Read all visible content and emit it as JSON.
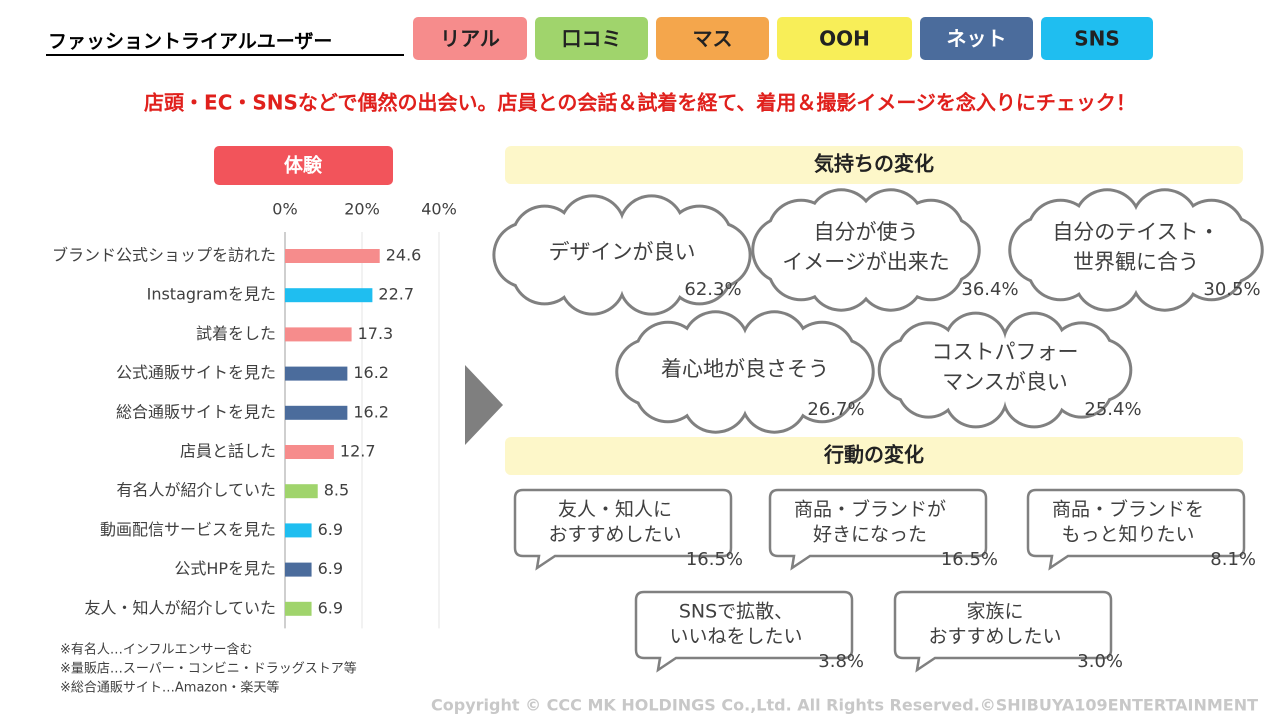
{
  "header": {
    "title": "ファッショントライアルユーザー",
    "tags": [
      {
        "label": "リアル",
        "color": "#f68c8c"
      },
      {
        "label": "口コミ",
        "color": "#a0d46c"
      },
      {
        "label": "マス",
        "color": "#f4a64c"
      },
      {
        "label": "OOH",
        "color": "#f8ee58"
      },
      {
        "label": "ネット",
        "color": "#4b6c9c"
      },
      {
        "label": "SNS",
        "color": "#1fbef0"
      }
    ]
  },
  "subtitle": "店頭・EC・SNSなどで偶然の出会い。店員との会話＆試着を経て、着用＆撮影イメージを念入りにチェック！",
  "chart_data": {
    "type": "bar",
    "orientation": "horizontal",
    "title": "体験",
    "categories": [
      "ブランド公式ショップを訪れた",
      "Instagramを見た",
      "試着をした",
      "公式通販サイトを見た",
      "総合通販サイトを見た",
      "店員と話した",
      "有名人が紹介していた",
      "動画配信サービスを見た",
      "公式HPを見た",
      "友人・知人が紹介していた"
    ],
    "values": [
      24.6,
      22.7,
      17.3,
      16.2,
      16.2,
      12.7,
      8.5,
      6.9,
      6.9,
      6.9
    ],
    "colors": [
      "#f68c8c",
      "#1fbef0",
      "#f68c8c",
      "#4b6c9c",
      "#4b6c9c",
      "#f68c8c",
      "#a0d46c",
      "#1fbef0",
      "#4b6c9c",
      "#a0d46c"
    ],
    "xlim": [
      0,
      40
    ],
    "xticks": [
      {
        "value": 0,
        "label": "0%"
      },
      {
        "value": 20,
        "label": "20%"
      },
      {
        "value": 40,
        "label": "40%"
      }
    ],
    "grid": true
  },
  "feelings": {
    "title": "気持ちの変化",
    "items": [
      {
        "lines": [
          "デザインが良い"
        ],
        "value": "62.3%"
      },
      {
        "lines": [
          "自分が使う",
          "イメージが出来た"
        ],
        "value": "36.4%"
      },
      {
        "lines": [
          "自分のテイスト・",
          "世界観に合う"
        ],
        "value": "30.5%"
      },
      {
        "lines": [
          "着心地が良さそう"
        ],
        "value": "26.7%"
      },
      {
        "lines": [
          "コストパフォー",
          "マンスが良い"
        ],
        "value": "25.4%"
      }
    ]
  },
  "actions": {
    "title": "行動の変化",
    "items": [
      {
        "lines": [
          "友人・知人に",
          "おすすめしたい"
        ],
        "value": "16.5%"
      },
      {
        "lines": [
          "商品・ブランドが",
          "好きになった"
        ],
        "value": "16.5%"
      },
      {
        "lines": [
          "商品・ブランドを",
          "もっと知りたい"
        ],
        "value": "8.1%"
      },
      {
        "lines": [
          "SNSで拡散、",
          "いいねをしたい"
        ],
        "value": "3.8%"
      },
      {
        "lines": [
          "家族に",
          "おすすめしたい"
        ],
        "value": "3.0%"
      }
    ]
  },
  "notes": [
    "※有名人…インフルエンサー含む",
    "※量販店…スーパー・コンビニ・ドラッグストア等",
    "※総合通販サイト…Amazon・楽天等"
  ],
  "copyright": "Copyright © CCC MK HOLDINGS Co.,Ltd. All Rights Reserved.©SHIBUYA109ENTERTAINMENT"
}
